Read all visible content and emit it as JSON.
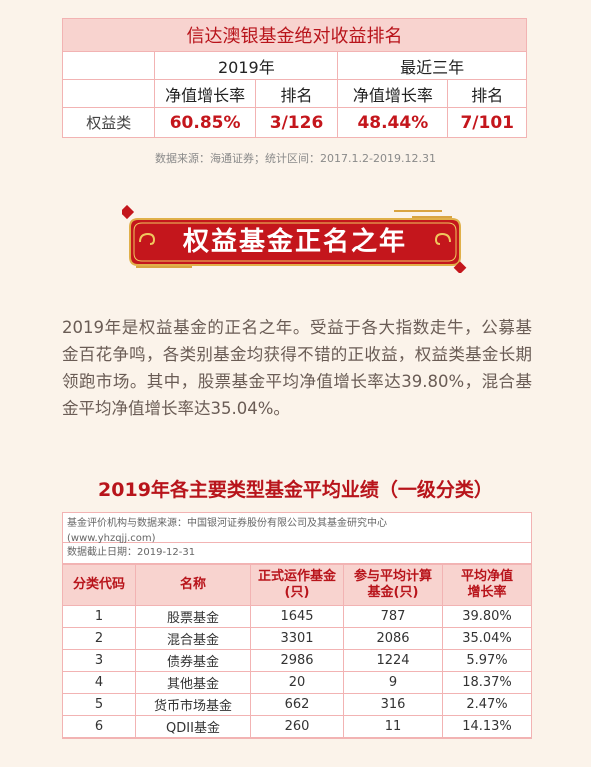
{
  "rank": {
    "title": "信达澳银基金绝对收益排名",
    "periods": [
      "2019年",
      "最近三年"
    ],
    "col_growth": "净值增长率",
    "col_rank": "排名",
    "row_label": "权益类",
    "growth_2019": "60.85%",
    "rank_2019": "3/126",
    "growth_3y": "48.44%",
    "rank_3y": "7/101"
  },
  "source_note": "数据来源：海通证券；统计区间：2017.1.2-2019.12.31",
  "banner": {
    "text": "权益基金正名之年",
    "colors": {
      "fill": "#c4161c",
      "border": "#e0b04a"
    }
  },
  "paragraph": "2019年是权益基金的正名之年。受益于各大指数走牛，公募基金百花争鸣，各类别基金均获得不错的正收益，权益类基金长期领跑市场。其中，股票基金平均净值增长率达39.80%，混合基金平均净值增长率达35.04%。",
  "section_title": "2019年各主要类型基金平均业绩（一级分类）",
  "perf": {
    "info_line1": "基金评价机构与数据来源：中国银河证券股份有限公司及其基金研究中心",
    "info_line2": "(www.yhzqjj.com)",
    "date_line": "数据截止日期：2019-12-31",
    "headers": {
      "code": "分类代码",
      "name": "名称",
      "count_a": "正式运作基金",
      "count_b": "(只)",
      "calc_a": "参与平均计算",
      "calc_b": "基金(只)",
      "growth_a": "平均净值",
      "growth_b": "增长率"
    },
    "rows": [
      {
        "code": "1",
        "name": "股票基金",
        "count": "1645",
        "calc": "787",
        "growth": "39.80%"
      },
      {
        "code": "2",
        "name": "混合基金",
        "count": "3301",
        "calc": "2086",
        "growth": "35.04%"
      },
      {
        "code": "3",
        "name": "债券基金",
        "count": "2986",
        "calc": "1224",
        "growth": "5.97%"
      },
      {
        "code": "4",
        "name": "其他基金",
        "count": "20",
        "calc": "9",
        "growth": "18.37%"
      },
      {
        "code": "5",
        "name": "货币市场基金",
        "count": "662",
        "calc": "316",
        "growth": "2.47%"
      },
      {
        "code": "6",
        "name": "QDII基金",
        "count": "260",
        "calc": "11",
        "growth": "14.13%"
      }
    ]
  }
}
